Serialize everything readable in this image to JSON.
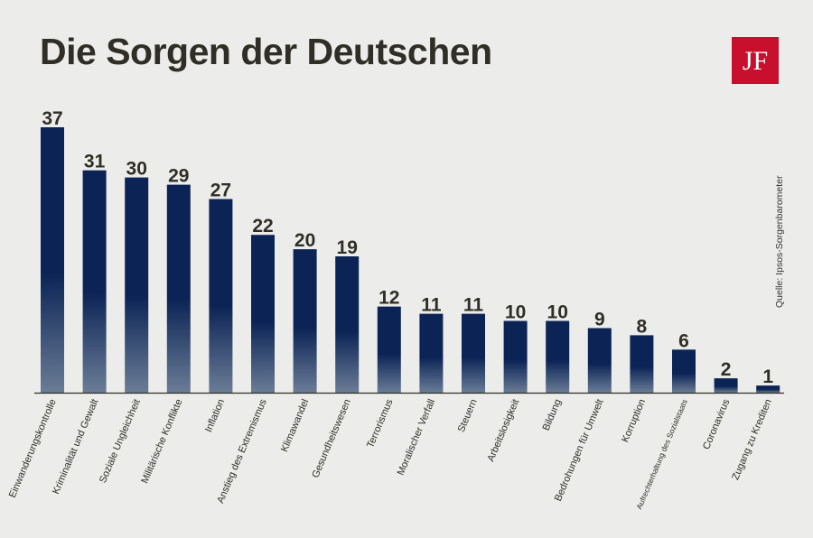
{
  "chart_data": {
    "type": "bar",
    "title": "Die Sorgen der Deutschen",
    "source": "Quelle: Ipsos-Sorgenbarometer",
    "categories": [
      "Einwanderungskontrolle",
      "Kriminalität und Gewalt",
      "Soziale Ungleichheit",
      "Militärische Konflikte",
      "Inflation",
      "Anstieg des Extremismus",
      "Klimawandel",
      "Gesundheitswesen",
      "Terrorismus",
      "Moralischer Verfall",
      "Steuern",
      "Arbeitslosigkeit",
      "Bildung",
      "Bedrohungen für Umwelt",
      "Korruption",
      "Aufrechterhaltung des Sozialstaats",
      "Coronavirus",
      "Zugang zu Krediten"
    ],
    "values": [
      37,
      31,
      30,
      29,
      27,
      22,
      20,
      19,
      12,
      11,
      11,
      10,
      10,
      9,
      8,
      6,
      2,
      1
    ],
    "ylim": [
      0,
      37
    ],
    "xlabel": "",
    "ylabel": "",
    "grid": false,
    "colors": {
      "bar_top": "#0b2455",
      "bar_bottom": "#6a7c96",
      "axis": "#2f2f27",
      "text": "#2f2f27"
    }
  },
  "logo": {
    "text": "JF",
    "background": "#c8102e"
  }
}
